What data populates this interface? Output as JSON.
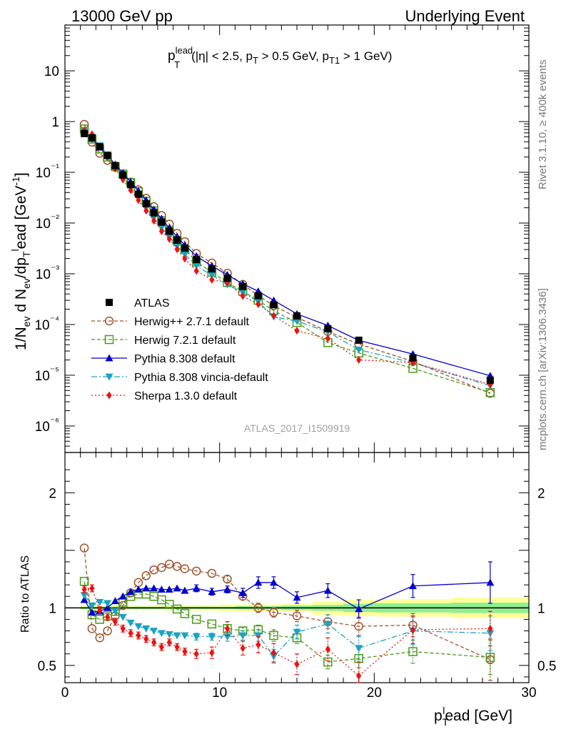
{
  "header": {
    "left": "13000 GeV pp",
    "right": "Underlying Event"
  },
  "side_labels": {
    "rivet": "Rivet 3.1.10, ≥ 400k events",
    "mcplots": "mcplots.cern.ch [arXiv:1306.3436]"
  },
  "chart_data": {
    "type": "scatter",
    "title": "p_T^lead (|η| < 2.5, p_T > 0.5 GeV, p_T1 > 1 GeV)",
    "title_parts": {
      "p": "p",
      "sub_t": "T",
      "sup_lead": "lead",
      "rest": "(|η| < 2.5, p",
      "mid": " > 0.5 GeV, p",
      "sub_t1": "T1",
      "end": " > 1 GeV)"
    },
    "watermark": "ATLAS_2017_I1509919",
    "xlabel": "p_T^lead [GeV]",
    "xlabel_parts": {
      "p": "p",
      "sub": "T",
      "sup": "l",
      "rest": "ead [GeV]"
    },
    "ylabel_main": "1/N_ev d N_ev/dp_T^lead [GeV^-1]",
    "ylabel_ratio": "Ratio to ATLAS",
    "xlim": [
      0,
      30
    ],
    "ylim_main": [
      3e-07,
      80
    ],
    "ylim_ratio": [
      0.35,
      2.35
    ],
    "x_ticks": [
      "0",
      "10",
      "20",
      "30"
    ],
    "main_y_ticks": [
      "10",
      "1",
      "10⁻¹",
      "10⁻²",
      "10⁻³",
      "10⁻⁴",
      "10⁻⁵",
      "10⁻⁶"
    ],
    "ratio_y_ticks": [
      "0.5",
      "1",
      "2"
    ],
    "legend_location": "center-left",
    "x": [
      1.25,
      1.75,
      2.25,
      2.75,
      3.25,
      3.75,
      4.25,
      4.75,
      5.25,
      5.75,
      6.25,
      6.75,
      7.25,
      7.75,
      8.5,
      9.5,
      10.5,
      11.5,
      12.5,
      13.5,
      15.0,
      17.0,
      19.0,
      22.5,
      27.5
    ],
    "data_series": {
      "name": "ATLAS",
      "values": [
        0.58,
        0.48,
        0.32,
        0.215,
        0.135,
        0.088,
        0.057,
        0.037,
        0.024,
        0.0158,
        0.0104,
        0.0069,
        0.0046,
        0.0032,
        0.0019,
        0.00125,
        0.00082,
        0.00056,
        0.00037,
        0.000245,
        0.000148,
        8.3e-05,
        4.9e-05,
        2.2e-05,
        8e-06
      ]
    },
    "series": [
      {
        "name": "Herwig++ 2.7.1 default",
        "color": "#a0522d",
        "dash": "5,3",
        "marker": "circle-open",
        "ratios": [
          1.52,
          0.82,
          0.74,
          0.8,
          0.93,
          1.02,
          1.13,
          1.22,
          1.28,
          1.33,
          1.35,
          1.38,
          1.36,
          1.34,
          1.32,
          1.3,
          1.25,
          1.1,
          1.0,
          0.96,
          0.93,
          0.88,
          0.84,
          0.85,
          0.55
        ],
        "errors": [
          0.02,
          0.02,
          0.02,
          0.02,
          0.02,
          0.02,
          0.02,
          0.02,
          0.02,
          0.02,
          0.02,
          0.02,
          0.02,
          0.02,
          0.02,
          0.02,
          0.03,
          0.03,
          0.04,
          0.04,
          0.05,
          0.06,
          0.08,
          0.1,
          0.18
        ]
      },
      {
        "name": "Herwig 7.2.1 default",
        "color": "#4a9a1a",
        "dash": "5,3",
        "marker": "square-open",
        "ratios": [
          1.23,
          0.94,
          0.9,
          0.93,
          0.97,
          1.05,
          1.1,
          1.12,
          1.12,
          1.1,
          1.07,
          1.03,
          0.99,
          0.95,
          0.9,
          0.86,
          0.82,
          0.8,
          0.81,
          0.76,
          0.74,
          0.53,
          0.56,
          0.62,
          0.57
        ],
        "errors": [
          0.02,
          0.02,
          0.02,
          0.02,
          0.02,
          0.02,
          0.02,
          0.02,
          0.02,
          0.02,
          0.02,
          0.02,
          0.02,
          0.02,
          0.02,
          0.02,
          0.03,
          0.03,
          0.04,
          0.05,
          0.05,
          0.06,
          0.08,
          0.1,
          0.15
        ]
      },
      {
        "name": "Pythia 8.308 default",
        "color": "#0000cc",
        "dash": "",
        "marker": "triangle-up",
        "ratios": [
          1.07,
          0.96,
          0.97,
          1.0,
          1.06,
          1.1,
          1.14,
          1.16,
          1.17,
          1.17,
          1.16,
          1.16,
          1.17,
          1.15,
          1.17,
          1.14,
          1.16,
          1.13,
          1.22,
          1.22,
          1.09,
          1.15,
          0.99,
          1.19,
          1.22
        ],
        "errors": [
          0.02,
          0.02,
          0.02,
          0.02,
          0.02,
          0.02,
          0.02,
          0.02,
          0.02,
          0.02,
          0.02,
          0.02,
          0.02,
          0.02,
          0.03,
          0.03,
          0.03,
          0.04,
          0.05,
          0.05,
          0.05,
          0.06,
          0.08,
          0.1,
          0.18
        ]
      },
      {
        "name": "Pythia 8.308 vincia-default",
        "color": "#1aa3c2",
        "dash": "8,3,2,3",
        "marker": "triangle-down",
        "ratios": [
          1.11,
          1.02,
          1.05,
          1.04,
          0.97,
          0.92,
          0.87,
          0.84,
          0.82,
          0.8,
          0.78,
          0.77,
          0.76,
          0.76,
          0.75,
          0.75,
          0.75,
          0.76,
          0.76,
          0.58,
          0.79,
          0.86,
          0.65,
          0.8,
          0.78
        ],
        "errors": [
          0.02,
          0.02,
          0.02,
          0.02,
          0.02,
          0.02,
          0.02,
          0.02,
          0.02,
          0.02,
          0.02,
          0.02,
          0.02,
          0.02,
          0.03,
          0.03,
          0.04,
          0.04,
          0.05,
          0.06,
          0.06,
          0.08,
          0.1,
          0.12,
          0.15
        ]
      },
      {
        "name": "Sherpa 1.3.0 default",
        "color": "#ee1111",
        "dash": "2,3",
        "marker": "diamond",
        "ratios": [
          1.16,
          1.17,
          0.98,
          0.92,
          0.88,
          0.82,
          0.78,
          0.76,
          0.73,
          0.7,
          0.66,
          0.7,
          0.66,
          0.62,
          0.6,
          0.61,
          0.82,
          0.65,
          0.68,
          0.61,
          0.51,
          0.64,
          0.41,
          0.81,
          0.82
        ],
        "errors": [
          0.03,
          0.03,
          0.03,
          0.03,
          0.03,
          0.03,
          0.03,
          0.03,
          0.03,
          0.03,
          0.03,
          0.03,
          0.03,
          0.03,
          0.04,
          0.05,
          0.06,
          0.06,
          0.07,
          0.08,
          0.09,
          0.1,
          0.12,
          0.12,
          0.15
        ]
      }
    ],
    "ratio_bands": {
      "x_edges": [
        1.0,
        1.5,
        2.0,
        2.5,
        3.0,
        3.5,
        4.0,
        4.5,
        5.0,
        5.5,
        6.0,
        6.5,
        7.0,
        7.5,
        8.0,
        9.0,
        10.0,
        11.0,
        12.0,
        13.0,
        14.0,
        16.0,
        18.0,
        20.0,
        25.0,
        30.0
      ],
      "stat_err": [
        0.01,
        0.01,
        0.01,
        0.01,
        0.01,
        0.01,
        0.01,
        0.01,
        0.01,
        0.01,
        0.01,
        0.01,
        0.01,
        0.01,
        0.01,
        0.01,
        0.01,
        0.015,
        0.015,
        0.015,
        0.02,
        0.025,
        0.035,
        0.04,
        0.045
      ],
      "total_err": [
        0.02,
        0.02,
        0.02,
        0.02,
        0.02,
        0.02,
        0.02,
        0.02,
        0.02,
        0.02,
        0.02,
        0.02,
        0.02,
        0.02,
        0.025,
        0.025,
        0.03,
        0.03,
        0.03,
        0.03,
        0.035,
        0.06,
        0.07,
        0.075,
        0.09
      ],
      "stat_color": "#90ee90",
      "total_color": "#ffff99"
    }
  }
}
